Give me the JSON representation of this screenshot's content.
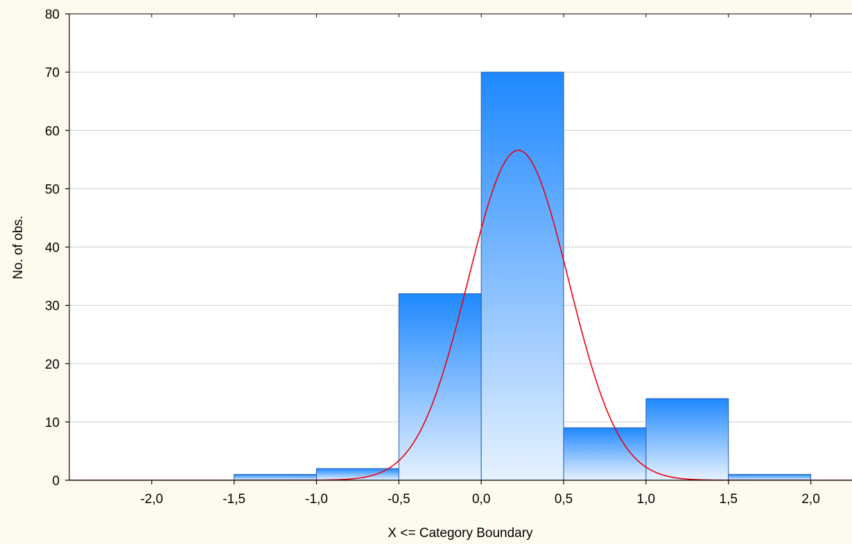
{
  "chart_data": {
    "type": "bar",
    "title": "",
    "xlabel": "X <= Category Boundary",
    "ylabel": "No. of obs.",
    "xlim": [
      -2.5,
      2.25
    ],
    "ylim": [
      0,
      80
    ],
    "x_ticks": [
      -2.0,
      -1.5,
      -1.0,
      -0.5,
      0.0,
      0.5,
      1.0,
      1.5,
      2.0
    ],
    "x_tick_labels": [
      "-2,0",
      "-1,5",
      "-1,0",
      "-0,5",
      "0,0",
      "0,5",
      "1,0",
      "1,5",
      "2,0"
    ],
    "y_ticks": [
      0,
      10,
      20,
      30,
      40,
      50,
      60,
      70,
      80
    ],
    "y_tick_labels": [
      "0",
      "10",
      "20",
      "30",
      "40",
      "50",
      "60",
      "70",
      "80"
    ],
    "grid": true,
    "bins": [
      {
        "from": -1.5,
        "to": -1.0,
        "count": 1
      },
      {
        "from": -1.0,
        "to": -0.5,
        "count": 2
      },
      {
        "from": -0.5,
        "to": 0.0,
        "count": 32
      },
      {
        "from": 0.0,
        "to": 0.5,
        "count": 70
      },
      {
        "from": 0.5,
        "to": 1.0,
        "count": 9
      },
      {
        "from": 1.0,
        "to": 1.5,
        "count": 14
      },
      {
        "from": 1.5,
        "to": 2.0,
        "count": 1
      }
    ],
    "series": [
      {
        "type": "histogram",
        "color": "#1e88ff"
      },
      {
        "type": "normal-fit",
        "mean": 0.225,
        "peak": 56.6,
        "sigma": 0.305,
        "color": "#e8000b"
      }
    ]
  }
}
